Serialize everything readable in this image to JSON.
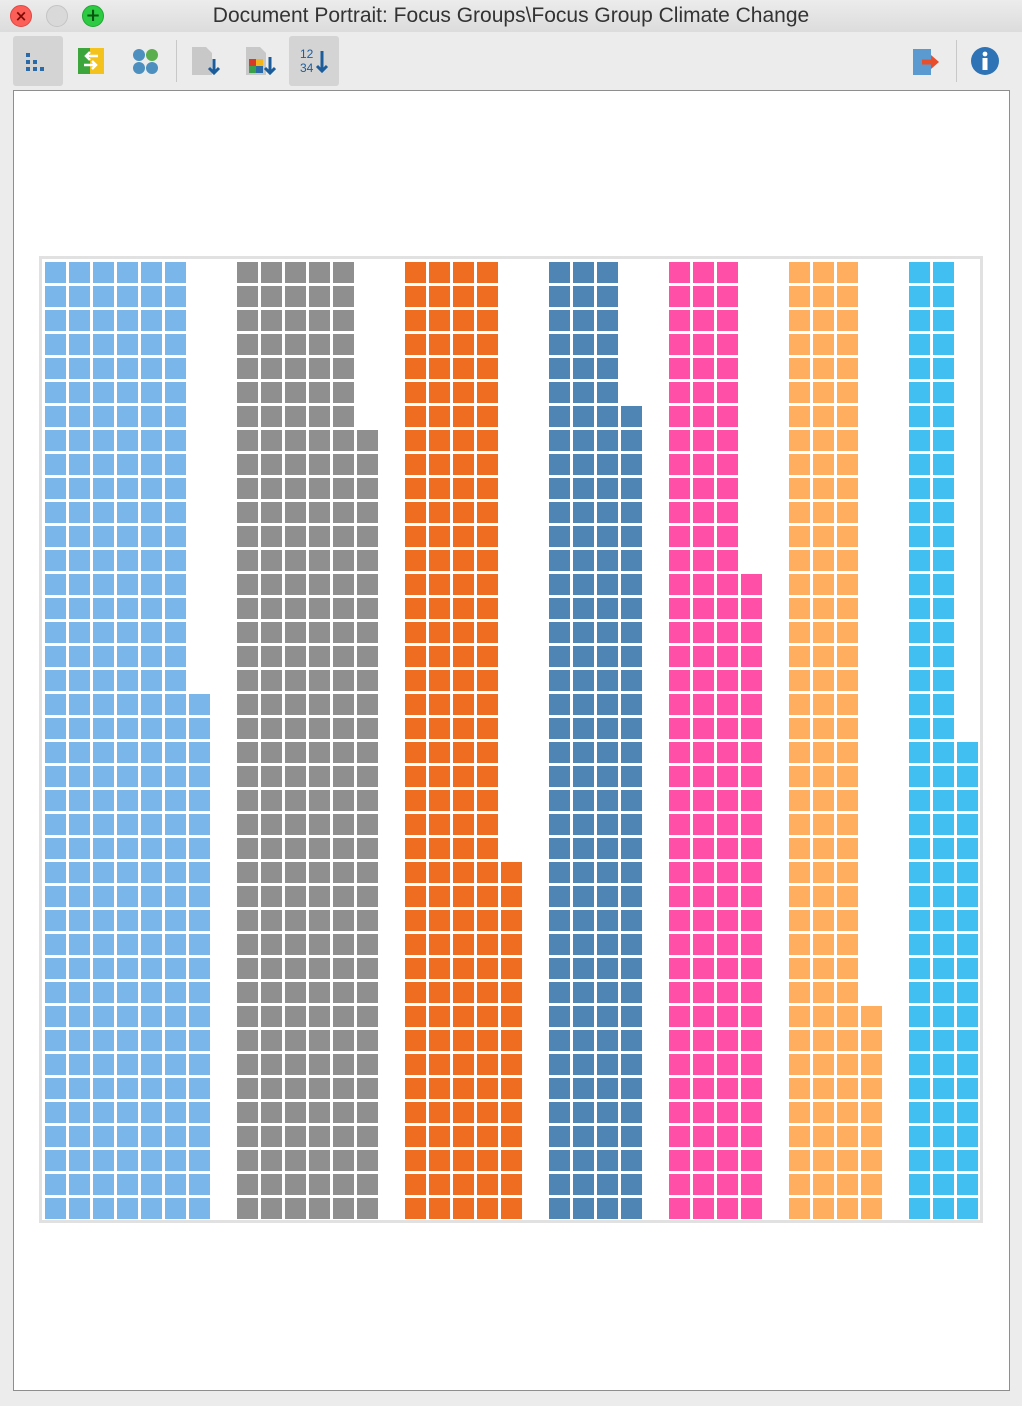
{
  "window": {
    "title": "Document Portrait: Focus Groups\\Focus Group Climate Change",
    "controls": [
      "close",
      "minimize",
      "zoom"
    ]
  },
  "toolbar": {
    "buttons": [
      {
        "icon": "pixel-grid-icon",
        "active": true
      },
      {
        "icon": "swap-colors-icon",
        "active": false
      },
      {
        "icon": "circle-tiles-icon",
        "active": false
      },
      {
        "icon": "sort-document-icon",
        "active": false
      },
      {
        "icon": "sort-by-color-icon",
        "active": false
      },
      {
        "icon": "sort-numeric-icon",
        "label": "12 34",
        "active": true
      },
      {
        "icon": "export-icon",
        "active": false
      },
      {
        "icon": "info-icon",
        "active": false
      }
    ]
  },
  "chart_data": {
    "type": "heatmap",
    "description_type": "document-portrait",
    "rows": 40,
    "columns": 39,
    "color_groups": [
      {
        "color": "#7ab6ea",
        "fill_columns": [
          {
            "columns": 6,
            "rows_from_top": 40
          },
          {
            "columns": 1,
            "rows_from_bottom": 22
          }
        ]
      },
      {
        "color": "#8f8f8f",
        "fill_columns": [
          {
            "columns": 5,
            "rows_from_top": 40
          },
          {
            "columns": 1,
            "rows_from_bottom": 33
          }
        ]
      },
      {
        "color": "#ee6d20",
        "fill_columns": [
          {
            "columns": 4,
            "rows_from_top": 40
          },
          {
            "columns": 1,
            "rows_from_bottom": 15
          }
        ]
      },
      {
        "color": "#4f85b4",
        "fill_columns": [
          {
            "columns": 3,
            "rows_from_top": 40
          },
          {
            "columns": 1,
            "rows_from_bottom": 34
          }
        ]
      },
      {
        "color": "#ff4fa6",
        "fill_columns": [
          {
            "columns": 3,
            "rows_from_top": 40
          },
          {
            "columns": 1,
            "rows_from_bottom": 27
          }
        ]
      },
      {
        "color": "#ffad5f",
        "fill_columns": [
          {
            "columns": 3,
            "rows_from_top": 40
          },
          {
            "columns": 1,
            "rows_from_bottom": 9
          }
        ]
      },
      {
        "color": "#40bff0",
        "fill_columns": [
          {
            "columns": 2,
            "rows_from_top": 40
          },
          {
            "columns": 1,
            "rows_from_bottom": 20
          }
        ]
      }
    ]
  }
}
